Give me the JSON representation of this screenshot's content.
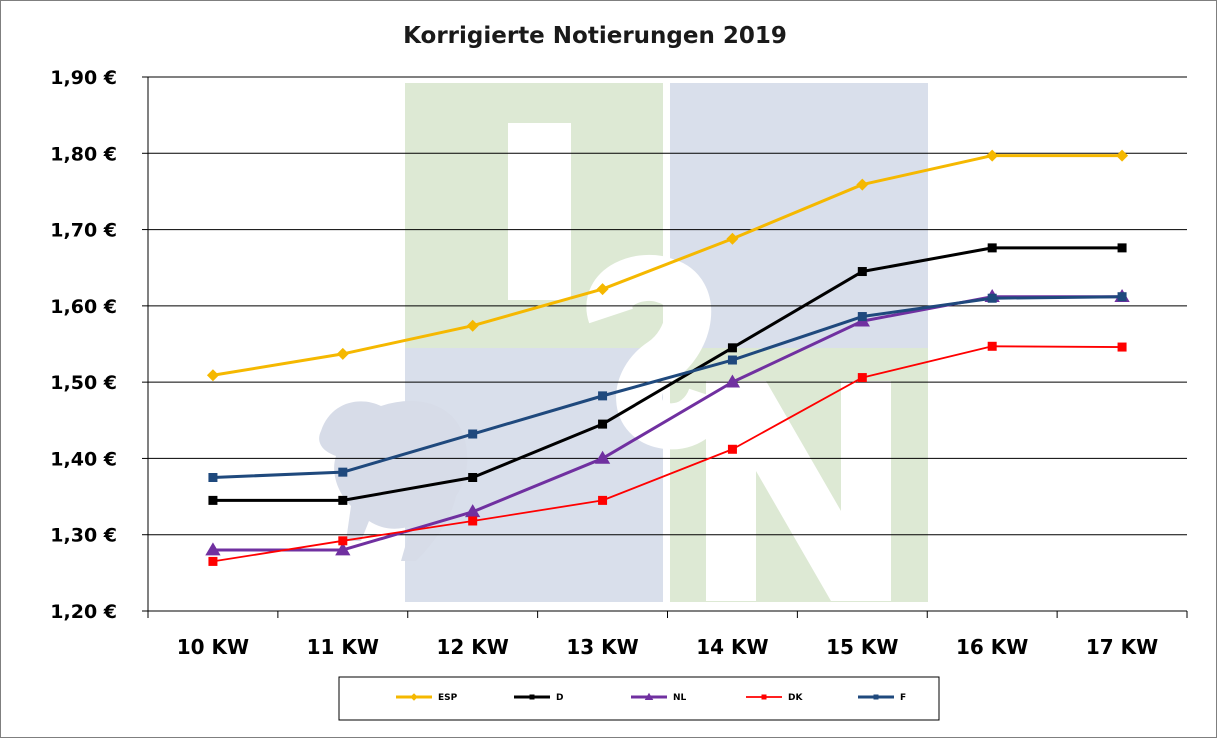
{
  "chart_data": {
    "type": "line",
    "title": "Korrigierte Notierungen 2019",
    "xlabel": "",
    "ylabel": "",
    "categories": [
      "10 KW",
      "11 KW",
      "12 KW",
      "13 KW",
      "14 KW",
      "15 KW",
      "16 KW",
      "17 KW"
    ],
    "ylim": [
      1.2,
      1.9
    ],
    "yticks": [
      1.2,
      1.3,
      1.4,
      1.5,
      1.6,
      1.7,
      1.8,
      1.9
    ],
    "ytick_labels": [
      "1,20 €",
      "1,30 €",
      "1,40 €",
      "1,50 €",
      "1,60 €",
      "1,70 €",
      "1,80 €",
      "1,90 €"
    ],
    "grid": "horizontal",
    "legend_position": "bottom",
    "series": [
      {
        "name": "ESP",
        "color": "#f5b800",
        "marker": "diamond",
        "values": [
          1.509,
          1.537,
          1.574,
          1.622,
          1.688,
          1.759,
          1.797,
          1.797
        ]
      },
      {
        "name": "D",
        "color": "#000000",
        "marker": "square",
        "values": [
          1.345,
          1.345,
          1.375,
          1.445,
          1.545,
          1.645,
          1.676,
          1.676
        ]
      },
      {
        "name": "NL",
        "color": "#7030a0",
        "marker": "triangle",
        "values": [
          1.28,
          1.28,
          1.33,
          1.4,
          1.5,
          1.58,
          1.612,
          1.612
        ]
      },
      {
        "name": "DK",
        "color": "#ff0000",
        "marker": "square",
        "values": [
          1.265,
          1.292,
          1.318,
          1.345,
          1.412,
          1.506,
          1.547,
          1.546
        ]
      },
      {
        "name": "F",
        "color": "#1f497d",
        "marker": "square",
        "values": [
          1.375,
          1.382,
          1.432,
          1.482,
          1.529,
          1.586,
          1.61,
          1.612
        ]
      }
    ]
  },
  "watermark": {
    "logo_text": "ISN",
    "green": "#dde9d4",
    "blue": "#d9dfeb"
  }
}
